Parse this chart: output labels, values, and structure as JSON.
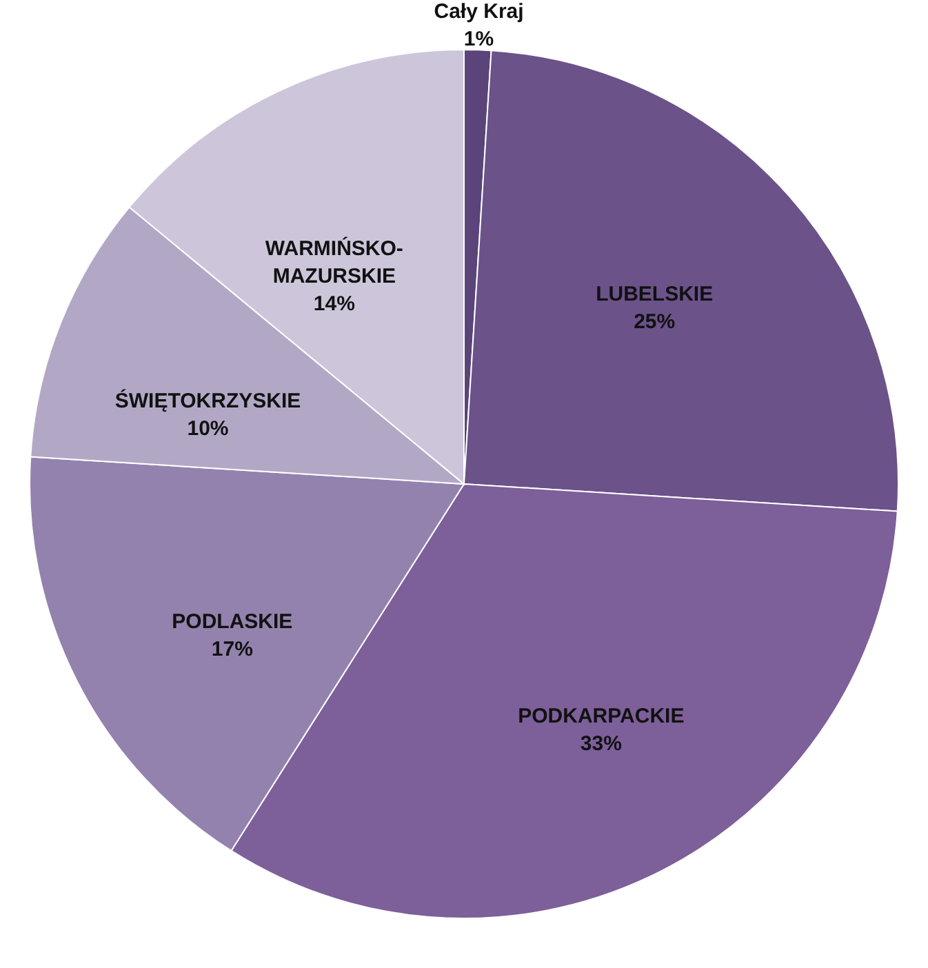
{
  "chart_data": {
    "type": "pie",
    "categories": [
      "Cały Kraj",
      "LUBELSKIE",
      "PODKARPACKIE",
      "PODLASKIE",
      "ŚWIĘTOKRZYSKIE",
      "WARMIŃSKO-MAZURSKIE"
    ],
    "values": [
      1,
      25,
      33,
      17,
      10,
      14
    ],
    "value_labels": [
      "1%",
      "25%",
      "33%",
      "17%",
      "10%",
      "14%"
    ],
    "colors": [
      "#5a4479",
      "#6b5289",
      "#7d5f9a",
      "#9482ae",
      "#b2a8c6",
      "#cdc6da"
    ]
  }
}
